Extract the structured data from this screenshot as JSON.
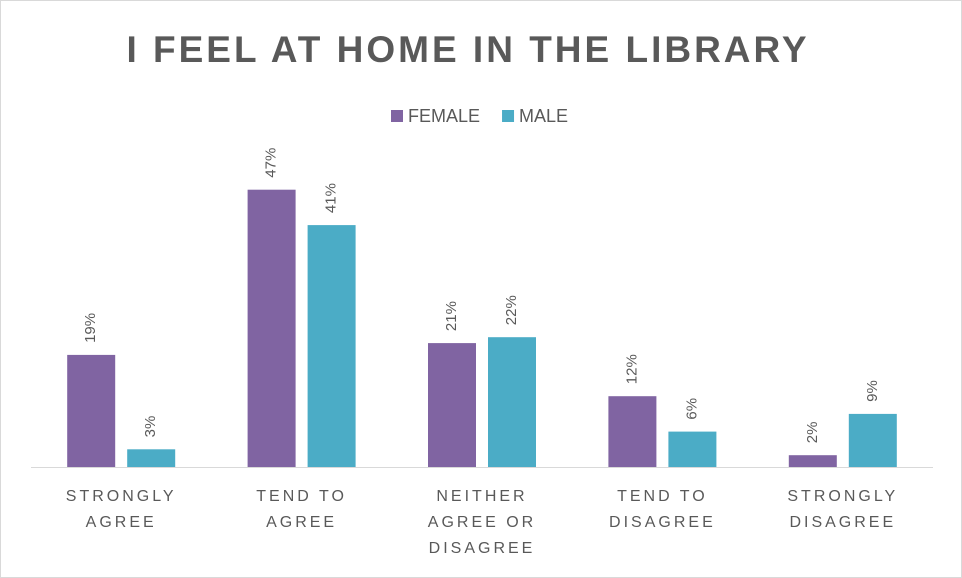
{
  "chart_data": {
    "type": "bar",
    "title": "I FEEL AT HOME IN THE LIBRARY",
    "categories": [
      "STRONGLY AGREE",
      "TEND TO AGREE",
      "NEITHER AGREE OR DISAGREE",
      "TEND TO DISAGREE",
      "STRONGLY DISAGREE"
    ],
    "series": [
      {
        "name": "FEMALE",
        "color": "#8064a2",
        "values": [
          19,
          47,
          21,
          12,
          2
        ],
        "value_labels": [
          "19%",
          "47%",
          "21%",
          "12%",
          "2%"
        ]
      },
      {
        "name": "MALE",
        "color": "#4bacc6",
        "values": [
          3,
          41,
          22,
          6,
          9
        ],
        "value_labels": [
          "3%",
          "41%",
          "22%",
          "6%",
          "9%"
        ]
      }
    ],
    "legend": "top"
  }
}
